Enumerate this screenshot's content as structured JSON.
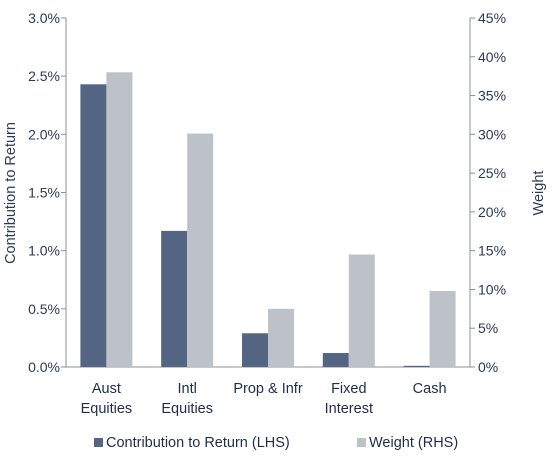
{
  "chart_data": {
    "type": "bar",
    "categories": [
      [
        "Aust",
        "Equities"
      ],
      [
        "Intl",
        "Equities"
      ],
      [
        "Prop & Infr"
      ],
      [
        "Fixed",
        "Interest"
      ],
      [
        "Cash"
      ]
    ],
    "series": [
      {
        "name": "Contribution to Return (LHS)",
        "axis": "left",
        "color": "#536583",
        "values": [
          2.43,
          1.17,
          0.29,
          0.12,
          0.01
        ]
      },
      {
        "name": "Weight (RHS)",
        "axis": "right",
        "color": "#bdc2c9",
        "values": [
          38.0,
          30.1,
          7.5,
          14.5,
          9.8
        ]
      }
    ],
    "left_axis": {
      "label": "Contribution to Return",
      "ylim": [
        0,
        3.0
      ],
      "ticks": [
        "0.0%",
        "0.5%",
        "1.0%",
        "1.5%",
        "2.0%",
        "2.5%",
        "3.0%"
      ]
    },
    "right_axis": {
      "label": "Weight",
      "ylim": [
        0,
        45
      ],
      "ticks": [
        "0%",
        "5%",
        "10%",
        "15%",
        "20%",
        "25%",
        "30%",
        "35%",
        "40%",
        "45%"
      ]
    },
    "grid": false,
    "legend_position": "bottom"
  }
}
